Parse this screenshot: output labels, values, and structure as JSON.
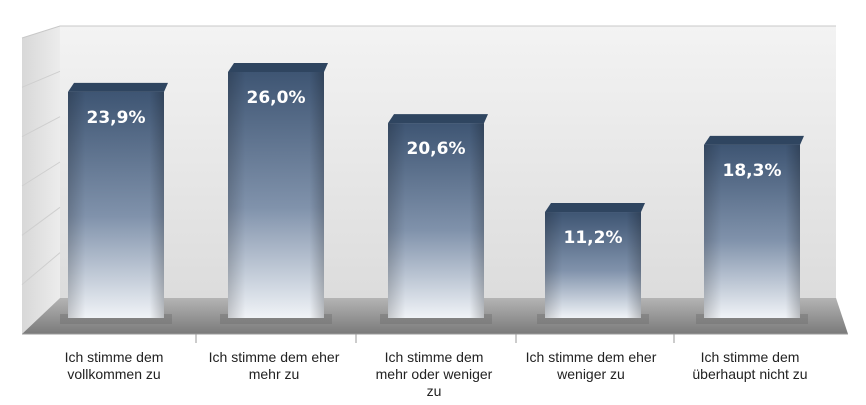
{
  "chart_data": {
    "type": "bar",
    "title": "",
    "xlabel": "",
    "ylabel": "",
    "ylim": [
      0,
      30
    ],
    "grid": true,
    "legend": "none",
    "categories": [
      "Ich stimme dem\nvollkommen zu",
      "Ich stimme dem eher\nmehr zu",
      "Ich stimme dem\nmehr oder weniger\nzu",
      "Ich stimme dem eher\nweniger  zu",
      "Ich stimme dem\nüberhaupt nicht zu"
    ],
    "values": [
      23.9,
      26.0,
      20.6,
      11.2,
      18.3
    ],
    "value_labels": [
      "23,9%",
      "26,0%",
      "20,6%",
      "11,2%",
      "18,3%"
    ],
    "colors": {
      "bar_top": "#3e5573",
      "bar_mid": "#7d8fa8",
      "bar_bottom": "#eef1f5",
      "bar_cap": "#2f4560",
      "label_text": "#ffffff",
      "wall": "#ececec",
      "floor": "#8a8a8a"
    }
  }
}
